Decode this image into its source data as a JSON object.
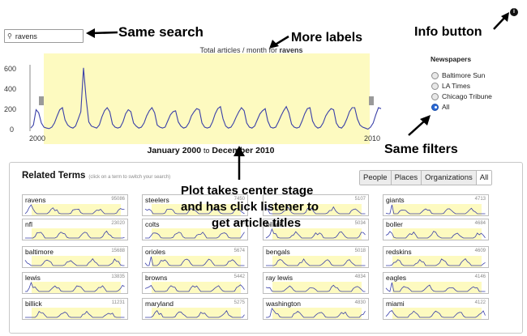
{
  "annotations": {
    "same_search": "Same search",
    "more_labels": "More labels",
    "info_button": "Info button",
    "same_filters": "Same filters",
    "plot_line1": "Plot takes center stage",
    "plot_line2": "and has click listener to",
    "plot_line3": "get article titles"
  },
  "search": {
    "value": "ravens",
    "icon": "magnifier-icon"
  },
  "plot": {
    "title_prefix": "Total articles / month for",
    "term": "ravens",
    "date_from": "January 2000",
    "date_to_word": "to",
    "date_to": "December 2010",
    "x_start_label": "2000",
    "x_end_label": "2010",
    "y_ticks": [
      "600",
      "400",
      "200",
      "0"
    ]
  },
  "chart_data": {
    "type": "line",
    "xlabel": "",
    "ylabel": "",
    "ylim": [
      0,
      650
    ],
    "x_range": [
      "2000",
      "2010"
    ],
    "values": [
      30,
      60,
      210,
      180,
      80,
      40,
      30,
      25,
      40,
      80,
      150,
      210,
      230,
      110,
      60,
      40,
      30,
      50,
      120,
      190,
      620,
      320,
      90,
      50,
      40,
      30,
      60,
      140,
      200,
      230,
      190,
      70,
      40,
      30,
      40,
      90,
      170,
      210,
      190,
      80,
      50,
      30,
      40,
      80,
      150,
      200,
      230,
      180,
      60,
      40,
      30,
      40,
      100,
      160,
      190,
      200,
      90,
      50,
      30,
      40,
      80,
      150,
      190,
      220,
      210,
      80,
      40,
      30,
      40,
      90,
      170,
      220,
      240,
      120,
      50,
      30,
      40,
      80,
      140,
      190,
      230,
      200,
      80,
      40,
      30,
      50,
      110,
      170,
      200,
      220,
      100,
      40,
      30,
      40,
      90,
      150,
      200,
      240,
      180,
      70,
      40,
      30,
      40,
      100,
      170,
      220,
      230,
      100,
      50,
      30,
      40,
      80,
      150,
      190,
      220,
      210,
      80,
      40,
      30,
      60,
      120,
      190,
      230,
      230,
      120,
      60,
      40,
      30,
      20,
      40,
      80,
      160,
      230,
      220
    ]
  },
  "newspapers": {
    "title": "Newspapers",
    "options": [
      {
        "label": "Baltimore Sun",
        "selected": false
      },
      {
        "label": "LA Times",
        "selected": false
      },
      {
        "label": "Chicago Tribune",
        "selected": false
      },
      {
        "label": "All",
        "selected": true
      }
    ]
  },
  "info": {
    "symbol": "i",
    "icon": "info-icon"
  },
  "related": {
    "title": "Related Terms",
    "hint": "(click on a term to switch your search)",
    "tabs": [
      "People",
      "Places",
      "Organizations",
      "All"
    ],
    "active_tab": "All",
    "terms": [
      {
        "term": "ravens",
        "count": "95086"
      },
      {
        "term": "steelers",
        "count": "7450"
      },
      {
        "term": "",
        "count": "5107"
      },
      {
        "term": "giants",
        "count": "4713"
      },
      {
        "term": "nfl",
        "count": "23020"
      },
      {
        "term": "colts",
        "count": "5890"
      },
      {
        "term": "billick",
        "count": "5034"
      },
      {
        "term": "boller",
        "count": "4684"
      },
      {
        "term": "baltimore",
        "count": "15688"
      },
      {
        "term": "orioles",
        "count": "5674"
      },
      {
        "term": "bengals",
        "count": "5018"
      },
      {
        "term": "redskins",
        "count": "4609"
      },
      {
        "term": "lewis",
        "count": "13835"
      },
      {
        "term": "browns",
        "count": "5442"
      },
      {
        "term": "ray lewis",
        "count": "4834"
      },
      {
        "term": "eagles",
        "count": "4146"
      },
      {
        "term": "billick",
        "count": "11231"
      },
      {
        "term": "maryland",
        "count": "5275"
      },
      {
        "term": "washington",
        "count": "4830"
      },
      {
        "term": "miami",
        "count": "4122"
      }
    ]
  }
}
